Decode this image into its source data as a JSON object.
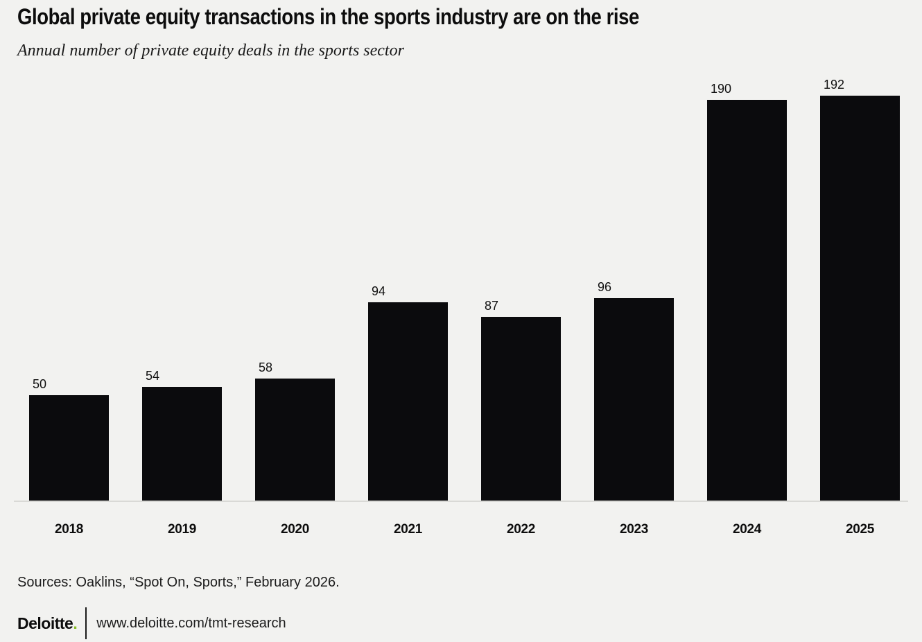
{
  "page": {
    "background_color": "#f2f2f0",
    "bar_color": "#0b0b0d",
    "accent_green": "#86bc25",
    "axis_line_color": "#d9d9d6"
  },
  "header": {
    "title": "Global private equity transactions in the sports industry are on the rise",
    "subtitle": "Annual number of private equity deals in the sports sector"
  },
  "chart_data": {
    "type": "bar",
    "title": "Global private equity transactions in the sports industry are on the rise",
    "subtitle": "Annual number of private equity deals in the sports sector",
    "categories": [
      "2018",
      "2019",
      "2020",
      "2021",
      "2022",
      "2023",
      "2024",
      "2025"
    ],
    "values": [
      50,
      54,
      58,
      94,
      87,
      96,
      190,
      192
    ],
    "data_labels": [
      "50",
      "54",
      "58",
      "94",
      "87",
      "96",
      "190",
      "192"
    ],
    "xlabel": "",
    "ylabel": "",
    "ylim": [
      0,
      192
    ],
    "grid": false,
    "legend": false,
    "bar_color": "#0b0b0d",
    "data_label_position": "above-bar-left-aligned"
  },
  "footer": {
    "sources": "Sources: Oaklins, “Spot On, Sports,” February 2026.",
    "logo_text": "Deloitte",
    "logo_dot": ".",
    "url": "www.deloitte.com/tmt-research"
  }
}
